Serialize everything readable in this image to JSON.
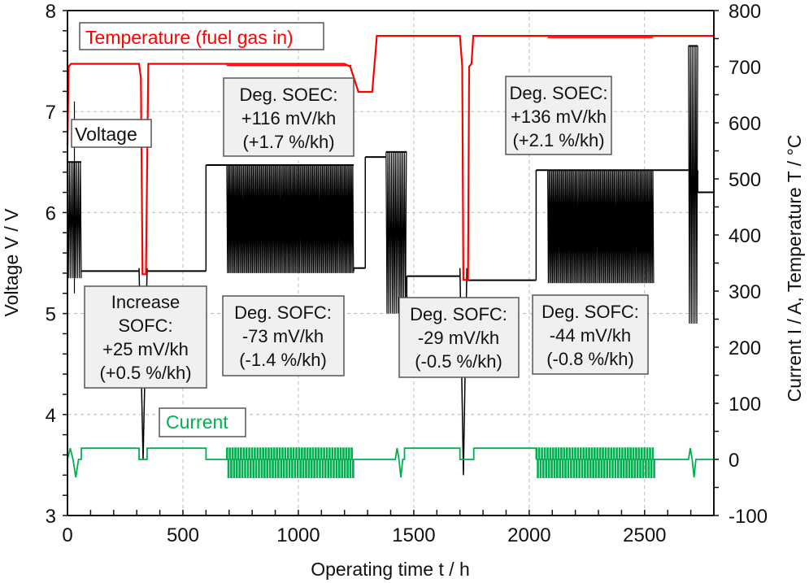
{
  "chart_data": {
    "type": "line",
    "title": "",
    "xlabel": "Operating time t / h",
    "ylabel_left": "Voltage V / V",
    "ylabel_right": "Current  I / A,  Temperature T / °C",
    "xlim": [
      0,
      2800
    ],
    "ylim_left": [
      3,
      8
    ],
    "ylim_right": [
      -100,
      800
    ],
    "x_ticks": [
      "0",
      "500",
      "1000",
      "1500",
      "2000",
      "2500"
    ],
    "y_ticks_left": [
      "3",
      "4",
      "5",
      "6",
      "7",
      "8"
    ],
    "y_ticks_right": [
      "-100",
      "0",
      "100",
      "200",
      "300",
      "400",
      "500",
      "600",
      "700",
      "800"
    ],
    "grid": true,
    "series": [
      {
        "name": "Temperature (fuel gas in)",
        "axis": "right",
        "color": "#ff0000",
        "points": [
          [
            0,
            560
          ],
          [
            5,
            700
          ],
          [
            15,
            705
          ],
          [
            310,
            705
          ],
          [
            318,
            680
          ],
          [
            325,
            330
          ],
          [
            340,
            330
          ],
          [
            350,
            705
          ],
          [
            600,
            705
          ],
          [
            1200,
            705
          ],
          [
            1225,
            700
          ],
          [
            1260,
            655
          ],
          [
            1320,
            655
          ],
          [
            1340,
            755
          ],
          [
            1700,
            755
          ],
          [
            1710,
            700
          ],
          [
            1715,
            320
          ],
          [
            1735,
            320
          ],
          [
            1740,
            700
          ],
          [
            1750,
            705
          ],
          [
            1758,
            755
          ],
          [
            2800,
            755
          ]
        ]
      },
      {
        "name": "Voltage",
        "axis": "left",
        "color": "#000000",
        "segments": [
          {
            "t_range": [
              0,
              60
            ],
            "description": "oscillating",
            "range_v": [
              5.35,
              6.5
            ]
          },
          {
            "t_range": [
              60,
              310
            ],
            "level_v": 5.42
          },
          {
            "t_range": [
              310,
              345
            ],
            "description": "spike down",
            "min_v": 3.55
          },
          {
            "t_range": [
              345,
              600
            ],
            "level_v": 5.42
          },
          {
            "t_range": [
              600,
              690
            ],
            "level_v": 6.47
          },
          {
            "t_range": [
              690,
              1240
            ],
            "description": "SOEC/SOFC cycling",
            "range_v": [
              5.4,
              6.47
            ]
          },
          {
            "t_range": [
              1240,
              1290
            ],
            "level_v": 5.45
          },
          {
            "t_range": [
              1290,
              1380
            ],
            "level_v": 6.55
          },
          {
            "t_range": [
              1380,
              1470
            ],
            "description": "oscillating",
            "range_v": [
              5.0,
              6.6
            ]
          },
          {
            "t_range": [
              1470,
              1700
            ],
            "level_v": 5.37
          },
          {
            "t_range": [
              1700,
              1730
            ],
            "description": "spike down",
            "min_v": 3.4
          },
          {
            "t_range": [
              1730,
              2030
            ],
            "level_v": 5.33
          },
          {
            "t_range": [
              2030,
              2080
            ],
            "level_v": 6.42
          },
          {
            "t_range": [
              2080,
              2540
            ],
            "description": "SOEC/SOFC cycling",
            "range_v": [
              5.3,
              6.42
            ]
          },
          {
            "t_range": [
              2540,
              2690
            ],
            "level_v": 6.42
          },
          {
            "t_range": [
              2690,
              2730
            ],
            "description": "oscillating",
            "range_v": [
              4.9,
              7.65
            ]
          },
          {
            "t_range": [
              2730,
              2800
            ],
            "level_v": 6.2
          }
        ]
      },
      {
        "name": "Current",
        "axis": "right",
        "color": "#00b050",
        "levels_a": {
          "high": 20,
          "zero": 0,
          "low": -32
        },
        "segments": [
          {
            "t_range": [
              0,
              60
            ],
            "description": "small oscillations",
            "range_a": [
              -32,
              20
            ]
          },
          {
            "t_range": [
              60,
              310
            ],
            "level_a": 20
          },
          {
            "t_range": [
              310,
              345
            ],
            "level_a": 0
          },
          {
            "t_range": [
              345,
              600
            ],
            "level_a": 20
          },
          {
            "t_range": [
              600,
              690
            ],
            "level_a": 0
          },
          {
            "t_range": [
              690,
              1240
            ],
            "description": "cycling",
            "range_a": [
              -32,
              20
            ]
          },
          {
            "t_range": [
              1240,
              1420
            ],
            "level_a": 0
          },
          {
            "t_range": [
              1420,
              1460
            ],
            "description": "dip",
            "range_a": [
              -32,
              20
            ]
          },
          {
            "t_range": [
              1460,
              1700
            ],
            "level_a": 20
          },
          {
            "t_range": [
              1700,
              1760
            ],
            "level_a": 0
          },
          {
            "t_range": [
              1760,
              2030
            ],
            "level_a": 20
          },
          {
            "t_range": [
              2030,
              2540
            ],
            "description": "cycling",
            "range_a": [
              -32,
              20
            ]
          },
          {
            "t_range": [
              2540,
              2690
            ],
            "level_a": 0
          },
          {
            "t_range": [
              2690,
              2730
            ],
            "description": "dip",
            "range_a": [
              -32,
              20
            ]
          },
          {
            "t_range": [
              2730,
              2800
            ],
            "level_a": 0
          }
        ]
      }
    ],
    "legend_labels": {
      "temperature": "Temperature (fuel gas in)",
      "voltage": "Voltage",
      "current": "Current"
    },
    "annotations": [
      {
        "id": "soec1",
        "lines": [
          "Deg. SOEC:",
          "+116 mV/kh",
          "(+1.7 %/kh)"
        ]
      },
      {
        "id": "soec2",
        "lines": [
          "Deg. SOEC:",
          "+136 mV/kh",
          "(+2.1 %/kh)"
        ]
      },
      {
        "id": "sofc-increase",
        "lines": [
          "Increase",
          "SOFC:",
          "+25 mV/kh",
          "(+0.5 %/kh)"
        ]
      },
      {
        "id": "sofc1",
        "lines": [
          "Deg. SOFC:",
          "-73 mV/kh",
          "(-1.4 %/kh)"
        ]
      },
      {
        "id": "sofc2",
        "lines": [
          "Deg. SOFC:",
          "-29 mV/kh",
          "(-0.5 %/kh)"
        ]
      },
      {
        "id": "sofc3",
        "lines": [
          "Deg. SOFC:",
          "-44 mV/kh",
          "(-0.8 %/kh)"
        ]
      }
    ],
    "colors": {
      "temperature": "#ff0000",
      "voltage": "#000000",
      "current": "#00b050",
      "annotation_bg": "#f0f0f0",
      "annotation_border": "#555555",
      "grid": "#bbbbbb"
    }
  }
}
